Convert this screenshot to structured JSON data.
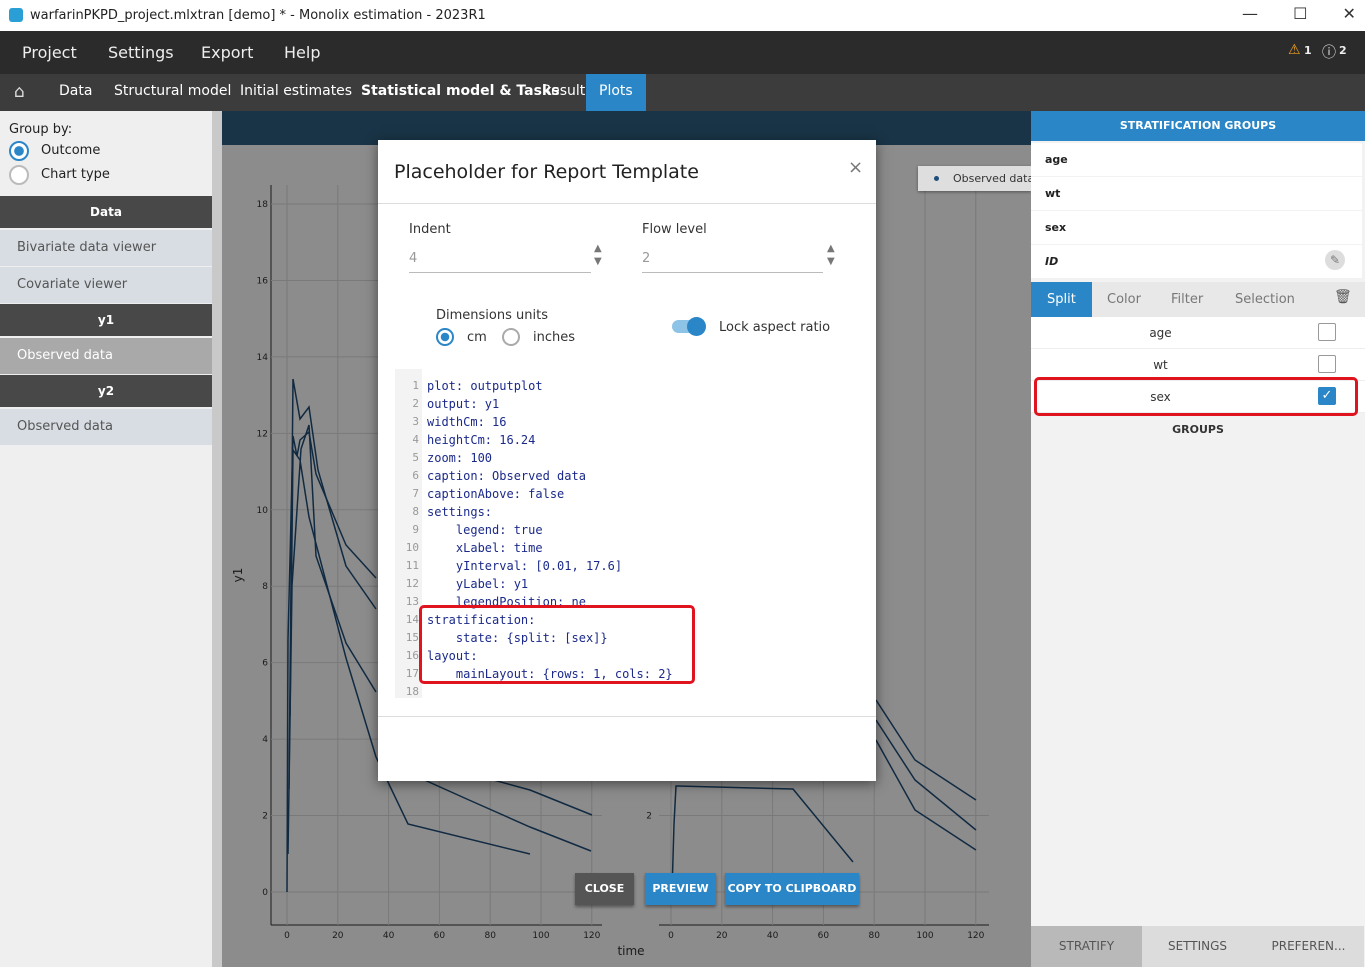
{
  "window": {
    "title": "warfarinPKPD_project.mlxtran [demo] * - Monolix estimation - 2023R1"
  },
  "menu": [
    "Project",
    "Settings",
    "Export",
    "Help"
  ],
  "alerts": {
    "warnings": "1",
    "infos": "2"
  },
  "tabs": [
    "Data",
    "Structural model",
    "Initial estimates",
    "Statistical model & Tasks",
    "Results",
    "Plots"
  ],
  "left_panel": {
    "group_by_label": "Group by:",
    "options": [
      "Outcome",
      "Chart type"
    ],
    "sections": [
      {
        "header": "Data",
        "items": [
          "Bivariate data viewer",
          "Covariate viewer"
        ]
      },
      {
        "header": "y1",
        "items": [
          "Observed data"
        ]
      },
      {
        "header": "y2",
        "items": [
          "Observed data"
        ]
      }
    ]
  },
  "plot": {
    "legend": "Observed data",
    "y_label": "y1",
    "x_label": "time",
    "left_yticks": [
      0,
      2,
      4,
      6,
      8,
      10,
      12,
      14,
      16,
      18
    ],
    "xticks": [
      0,
      20,
      40,
      60,
      80,
      100,
      120
    ],
    "right_yticks": [
      0,
      2
    ]
  },
  "modal": {
    "title": "Placeholder for Report Template",
    "close": "×",
    "indent_label": "Indent",
    "indent_value": "4",
    "flow_label": "Flow level",
    "flow_value": "2",
    "dimensions_label": "Dimensions units",
    "units": [
      "cm",
      "inches"
    ],
    "lock_label": "Lock aspect ratio",
    "code": [
      {
        "n": 1,
        "text": "plot: outputplot"
      },
      {
        "n": 2,
        "text": "output: y1"
      },
      {
        "n": 3,
        "text": "widthCm: 16"
      },
      {
        "n": 4,
        "text": "heightCm: 16.24"
      },
      {
        "n": 5,
        "text": "zoom: 100"
      },
      {
        "n": 6,
        "text": "caption: Observed data"
      },
      {
        "n": 7,
        "text": "captionAbove: false"
      },
      {
        "n": 8,
        "text": "settings:"
      },
      {
        "n": 9,
        "text": "    legend: true"
      },
      {
        "n": 10,
        "text": "    xLabel: time"
      },
      {
        "n": 11,
        "text": "    yInterval: [0.01, 17.6]"
      },
      {
        "n": 12,
        "text": "    yLabel: y1"
      },
      {
        "n": 13,
        "text": "    legendPosition: ne"
      },
      {
        "n": 14,
        "text": "stratification:"
      },
      {
        "n": 15,
        "text": "    state: {split: [sex]}"
      },
      {
        "n": 16,
        "text": "layout:"
      },
      {
        "n": 17,
        "text": "    mainLayout: {rows: 1, cols: 2}"
      },
      {
        "n": 18,
        "text": ""
      }
    ],
    "buttons": [
      "CLOSE",
      "PREVIEW",
      "COPY TO CLIPBOARD"
    ]
  },
  "right_panel": {
    "header": "STRATIFICATION GROUPS",
    "groups": [
      "age",
      "wt",
      "sex",
      "ID"
    ],
    "tabs": [
      "Split",
      "Color",
      "Filter",
      "Selection"
    ],
    "split_items": [
      "age",
      "wt",
      "sex"
    ],
    "groups_label": "GROUPS",
    "bottom_tabs": [
      "STRATIFY",
      "SETTINGS",
      "PREFEREN..."
    ]
  }
}
